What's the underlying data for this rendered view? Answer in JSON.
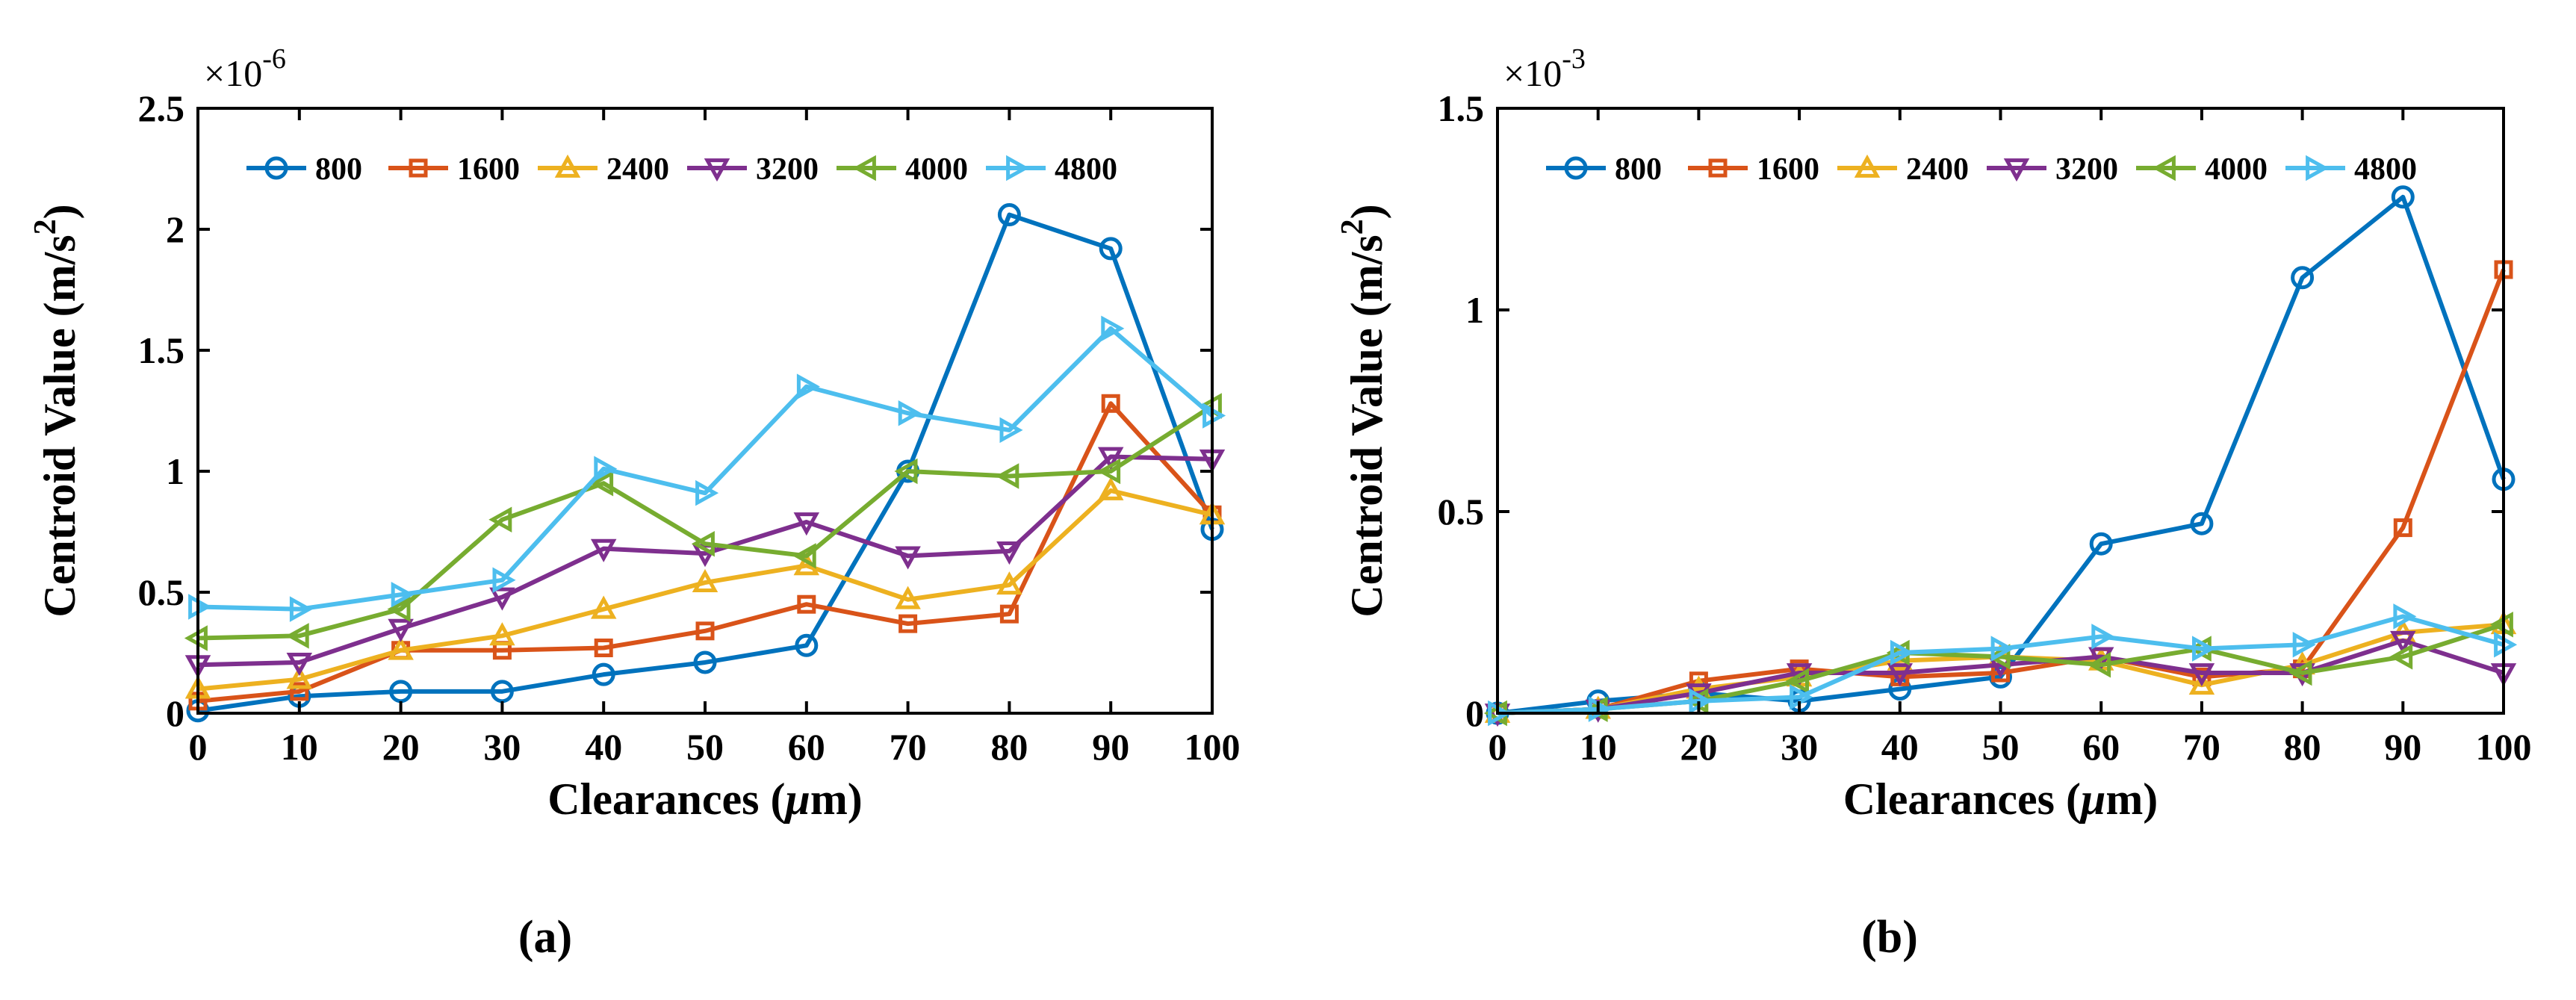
{
  "figure": {
    "panel_a_label": "(a)",
    "panel_b_label": "(b)"
  },
  "chart_data": [
    {
      "type": "line",
      "id": "a",
      "xlabel_prefix": "Clearances (",
      "xlabel_mu": "μ",
      "xlabel_suffix": "m)",
      "ylabel_text": "Centroid Value (m/s",
      "ylabel_sup": "2",
      "ylabel_close": ")",
      "scale_base": "×10",
      "scale_exp": "-6",
      "xlim": [
        0,
        100
      ],
      "ylim": [
        0,
        2.5
      ],
      "xticks": [
        0,
        10,
        20,
        30,
        40,
        50,
        60,
        70,
        80,
        90,
        100
      ],
      "xtick_labels": [
        "0",
        "10",
        "20",
        "30",
        "40",
        "50",
        "60",
        "70",
        "80",
        "90",
        "100"
      ],
      "yticks": [
        0,
        0.5,
        1,
        1.5,
        2,
        2.5
      ],
      "ytick_labels": [
        "0",
        "0.5",
        "1",
        "1.5",
        "2",
        "2.5"
      ],
      "legend_position": "top",
      "x": [
        0,
        10,
        20,
        30,
        40,
        50,
        60,
        70,
        80,
        90,
        100
      ],
      "series": [
        {
          "name": "800",
          "color": "#0072BD",
          "marker": "circle",
          "values": [
            0.01,
            0.07,
            0.09,
            0.09,
            0.16,
            0.21,
            0.28,
            1.0,
            2.06,
            1.92,
            0.76
          ]
        },
        {
          "name": "1600",
          "color": "#D95319",
          "marker": "square",
          "values": [
            0.05,
            0.09,
            0.26,
            0.26,
            0.27,
            0.34,
            0.45,
            0.37,
            0.41,
            1.28,
            0.82
          ]
        },
        {
          "name": "2400",
          "color": "#EDB120",
          "marker": "triangle-up",
          "values": [
            0.1,
            0.14,
            0.26,
            0.32,
            0.43,
            0.54,
            0.61,
            0.47,
            0.53,
            0.92,
            0.82
          ]
        },
        {
          "name": "3200",
          "color": "#7E2F8E",
          "marker": "triangle-down",
          "values": [
            0.2,
            0.21,
            0.35,
            0.48,
            0.68,
            0.66,
            0.79,
            0.65,
            0.67,
            1.06,
            1.05
          ]
        },
        {
          "name": "4000",
          "color": "#77AC30",
          "marker": "triangle-left",
          "values": [
            0.31,
            0.32,
            0.43,
            0.8,
            0.95,
            0.7,
            0.65,
            1.0,
            0.98,
            1.0,
            1.27
          ]
        },
        {
          "name": "4800",
          "color": "#4DBEEE",
          "marker": "triangle-right",
          "values": [
            0.44,
            0.43,
            0.49,
            0.55,
            1.01,
            0.91,
            1.35,
            1.24,
            1.17,
            1.59,
            1.23
          ]
        }
      ]
    },
    {
      "type": "line",
      "id": "b",
      "xlabel_prefix": "Clearances (",
      "xlabel_mu": "μ",
      "xlabel_suffix": "m)",
      "ylabel_text": "Centroid Value (m/s",
      "ylabel_sup": "2",
      "ylabel_close": ")",
      "scale_base": "×10",
      "scale_exp": "-3",
      "xlim": [
        0,
        100
      ],
      "ylim": [
        0,
        1.5
      ],
      "xticks": [
        0,
        10,
        20,
        30,
        40,
        50,
        60,
        70,
        80,
        90,
        100
      ],
      "xtick_labels": [
        "0",
        "10",
        "20",
        "30",
        "40",
        "50",
        "60",
        "70",
        "80",
        "90",
        "100"
      ],
      "yticks": [
        0,
        0.5,
        1,
        1.5
      ],
      "ytick_labels": [
        "0",
        "0.5",
        "1",
        "1.5"
      ],
      "legend_position": "top",
      "x": [
        0,
        10,
        20,
        30,
        40,
        50,
        60,
        70,
        80,
        90,
        100
      ],
      "series": [
        {
          "name": "800",
          "color": "#0072BD",
          "marker": "circle",
          "values": [
            0.0,
            0.03,
            0.05,
            0.03,
            0.06,
            0.09,
            0.42,
            0.47,
            1.08,
            1.28,
            0.58
          ]
        },
        {
          "name": "1600",
          "color": "#D95319",
          "marker": "square",
          "values": [
            0.0,
            0.01,
            0.08,
            0.11,
            0.09,
            0.1,
            0.14,
            0.09,
            0.11,
            0.46,
            1.1
          ]
        },
        {
          "name": "2400",
          "color": "#EDB120",
          "marker": "triangle-up",
          "values": [
            0.0,
            0.01,
            0.06,
            0.09,
            0.13,
            0.14,
            0.13,
            0.07,
            0.12,
            0.2,
            0.22
          ]
        },
        {
          "name": "3200",
          "color": "#7E2F8E",
          "marker": "triangle-down",
          "values": [
            0.0,
            0.01,
            0.05,
            0.1,
            0.1,
            0.12,
            0.14,
            0.1,
            0.1,
            0.18,
            0.1
          ]
        },
        {
          "name": "4000",
          "color": "#77AC30",
          "marker": "triangle-left",
          "values": [
            0.0,
            0.01,
            0.03,
            0.08,
            0.15,
            0.14,
            0.12,
            0.16,
            0.1,
            0.14,
            0.22
          ]
        },
        {
          "name": "4800",
          "color": "#4DBEEE",
          "marker": "triangle-right",
          "values": [
            0.0,
            0.01,
            0.03,
            0.04,
            0.15,
            0.16,
            0.19,
            0.16,
            0.17,
            0.24,
            0.17
          ]
        }
      ]
    }
  ]
}
